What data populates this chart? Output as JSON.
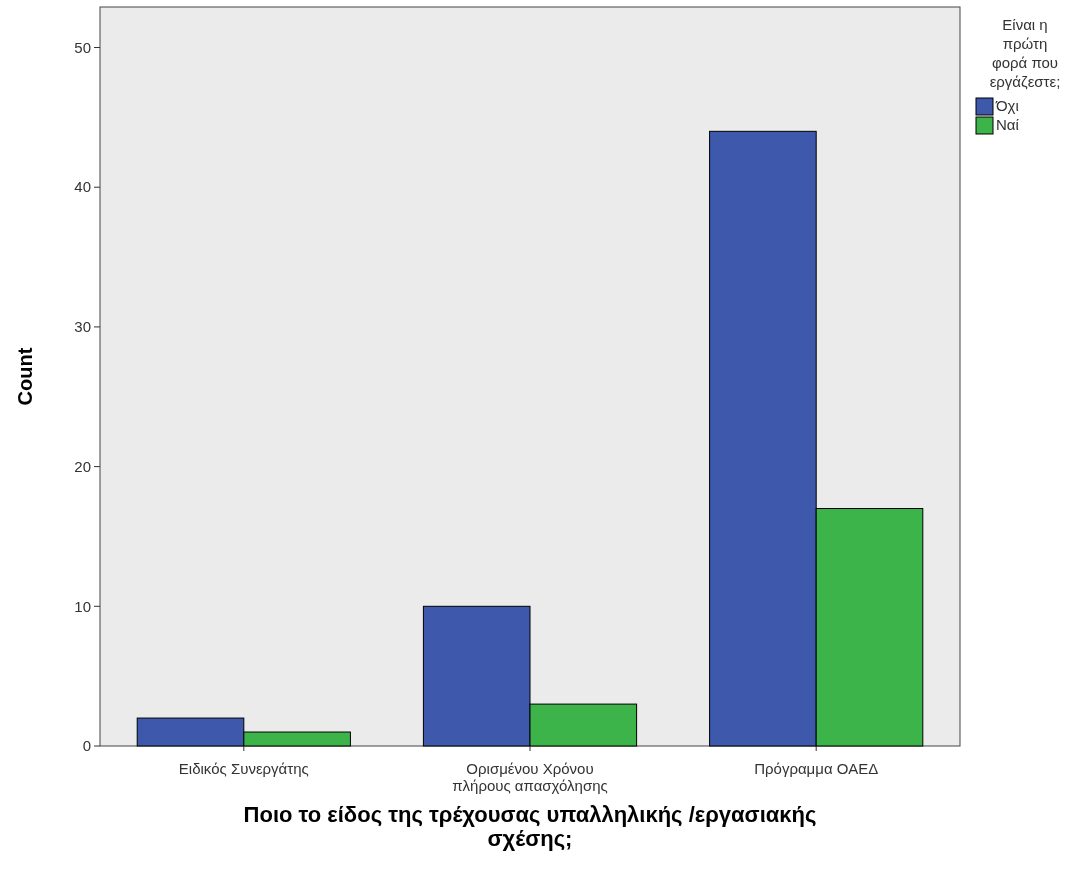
{
  "chart_data": {
    "type": "bar",
    "xlabel": "Ποιο το είδος της τρέχουσας υπαλληλικής /εργασιακής σχέσης;",
    "ylabel": "Count",
    "legend_title": "Είναι η πρώτη φορά που εργάζεστε;",
    "categories": [
      "Ειδικός Συνεργάτης",
      "Ορισμένου Χρόνου πλήρους απασχόλησης",
      "Πρόγραμμα ΟΑΕΔ"
    ],
    "series": [
      {
        "name": "Όχι",
        "color": "#3e58ac",
        "values": [
          2,
          10,
          44
        ]
      },
      {
        "name": "Ναί",
        "color": "#3cb44a",
        "values": [
          1,
          3,
          17
        ]
      }
    ],
    "ylim": [
      0,
      52.9
    ],
    "yticks": [
      0,
      10,
      20,
      30,
      40,
      50
    ],
    "grid": false,
    "legend": "right"
  }
}
